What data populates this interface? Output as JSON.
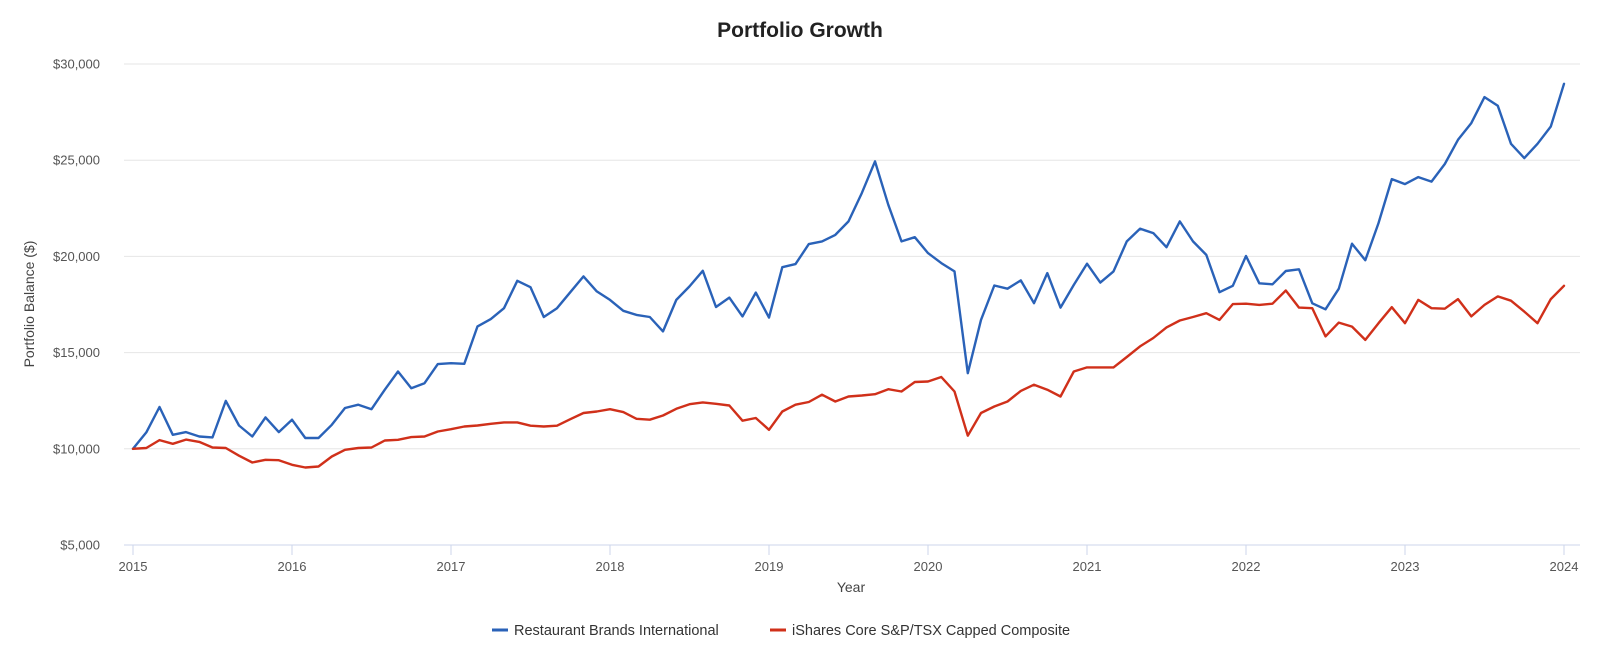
{
  "chart_data": {
    "type": "line",
    "title": "Portfolio Growth",
    "xlabel": "Year",
    "ylabel": "Portfolio Balance ($)",
    "x_start": "2015-01",
    "x_interval": "monthly",
    "xlim": [
      2015,
      2024.05
    ],
    "ylim": [
      5000,
      30000
    ],
    "x_ticks": [
      "2015",
      "2016",
      "2017",
      "2018",
      "2019",
      "2020",
      "2021",
      "2022",
      "2023",
      "2024"
    ],
    "y_ticks": [
      "$5,000",
      "$10,000",
      "$15,000",
      "$20,000",
      "$25,000",
      "$30,000"
    ],
    "y_tick_values": [
      5000,
      10000,
      15000,
      20000,
      25000,
      30000
    ],
    "grid": true,
    "legend_position": "bottom-center",
    "series": [
      {
        "name": "Restaurant Brands International",
        "color": "#2a62b8",
        "values": [
          10000,
          10850,
          12170,
          10730,
          10870,
          10640,
          10590,
          12490,
          11210,
          10640,
          11630,
          10870,
          11510,
          10560,
          10560,
          11250,
          12120,
          12290,
          12060,
          13070,
          14020,
          13150,
          13410,
          14400,
          14450,
          14420,
          16360,
          16740,
          17310,
          18730,
          18400,
          16850,
          17310,
          18140,
          18960,
          18180,
          17740,
          17170,
          16960,
          16850,
          16100,
          17740,
          18440,
          19250,
          17370,
          17860,
          16880,
          18120,
          16820,
          19440,
          19600,
          20640,
          20780,
          21120,
          21820,
          23290,
          24940,
          22680,
          20780,
          21000,
          20170,
          19650,
          19220,
          13930,
          16700,
          18490,
          18320,
          18750,
          17570,
          19130,
          17340,
          18520,
          19620,
          18640,
          19220,
          20780,
          21440,
          21210,
          20480,
          21820,
          20780,
          20080,
          18140,
          18470,
          20020,
          18600,
          18550,
          19240,
          19330,
          17560,
          17250,
          18320,
          20660,
          19800,
          21730,
          24020,
          23760,
          24120,
          23890,
          24800,
          26060,
          26930,
          28280,
          27830,
          25850,
          25110,
          25850,
          26750,
          28970
        ]
      },
      {
        "name": "iShares Core S&P/TSX Capped Composite",
        "color": "#d0301a",
        "values": [
          10000,
          10040,
          10450,
          10260,
          10480,
          10360,
          10070,
          10040,
          9640,
          9290,
          9430,
          9410,
          9170,
          9030,
          9080,
          9600,
          9950,
          10040,
          10070,
          10430,
          10470,
          10610,
          10640,
          10900,
          11020,
          11160,
          11210,
          11300,
          11370,
          11370,
          11200,
          11160,
          11200,
          11540,
          11860,
          11940,
          12060,
          11910,
          11560,
          11510,
          11730,
          12080,
          12320,
          12410,
          12340,
          12250,
          11460,
          11600,
          10990,
          11940,
          12290,
          12430,
          12810,
          12460,
          12720,
          12770,
          12840,
          13100,
          12980,
          13470,
          13500,
          13730,
          12980,
          10680,
          11860,
          12200,
          12460,
          13010,
          13330,
          13070,
          12720,
          14020,
          14230,
          14230,
          14230,
          14770,
          15320,
          15760,
          16310,
          16670,
          16850,
          17050,
          16700,
          17520,
          17540,
          17480,
          17540,
          18230,
          17340,
          17310,
          15840,
          16560,
          16350,
          15660,
          16530,
          17360,
          16530,
          17740,
          17310,
          17280,
          17780,
          16880,
          17480,
          17920,
          17700,
          17130,
          16530,
          17780,
          18470
        ]
      }
    ]
  }
}
